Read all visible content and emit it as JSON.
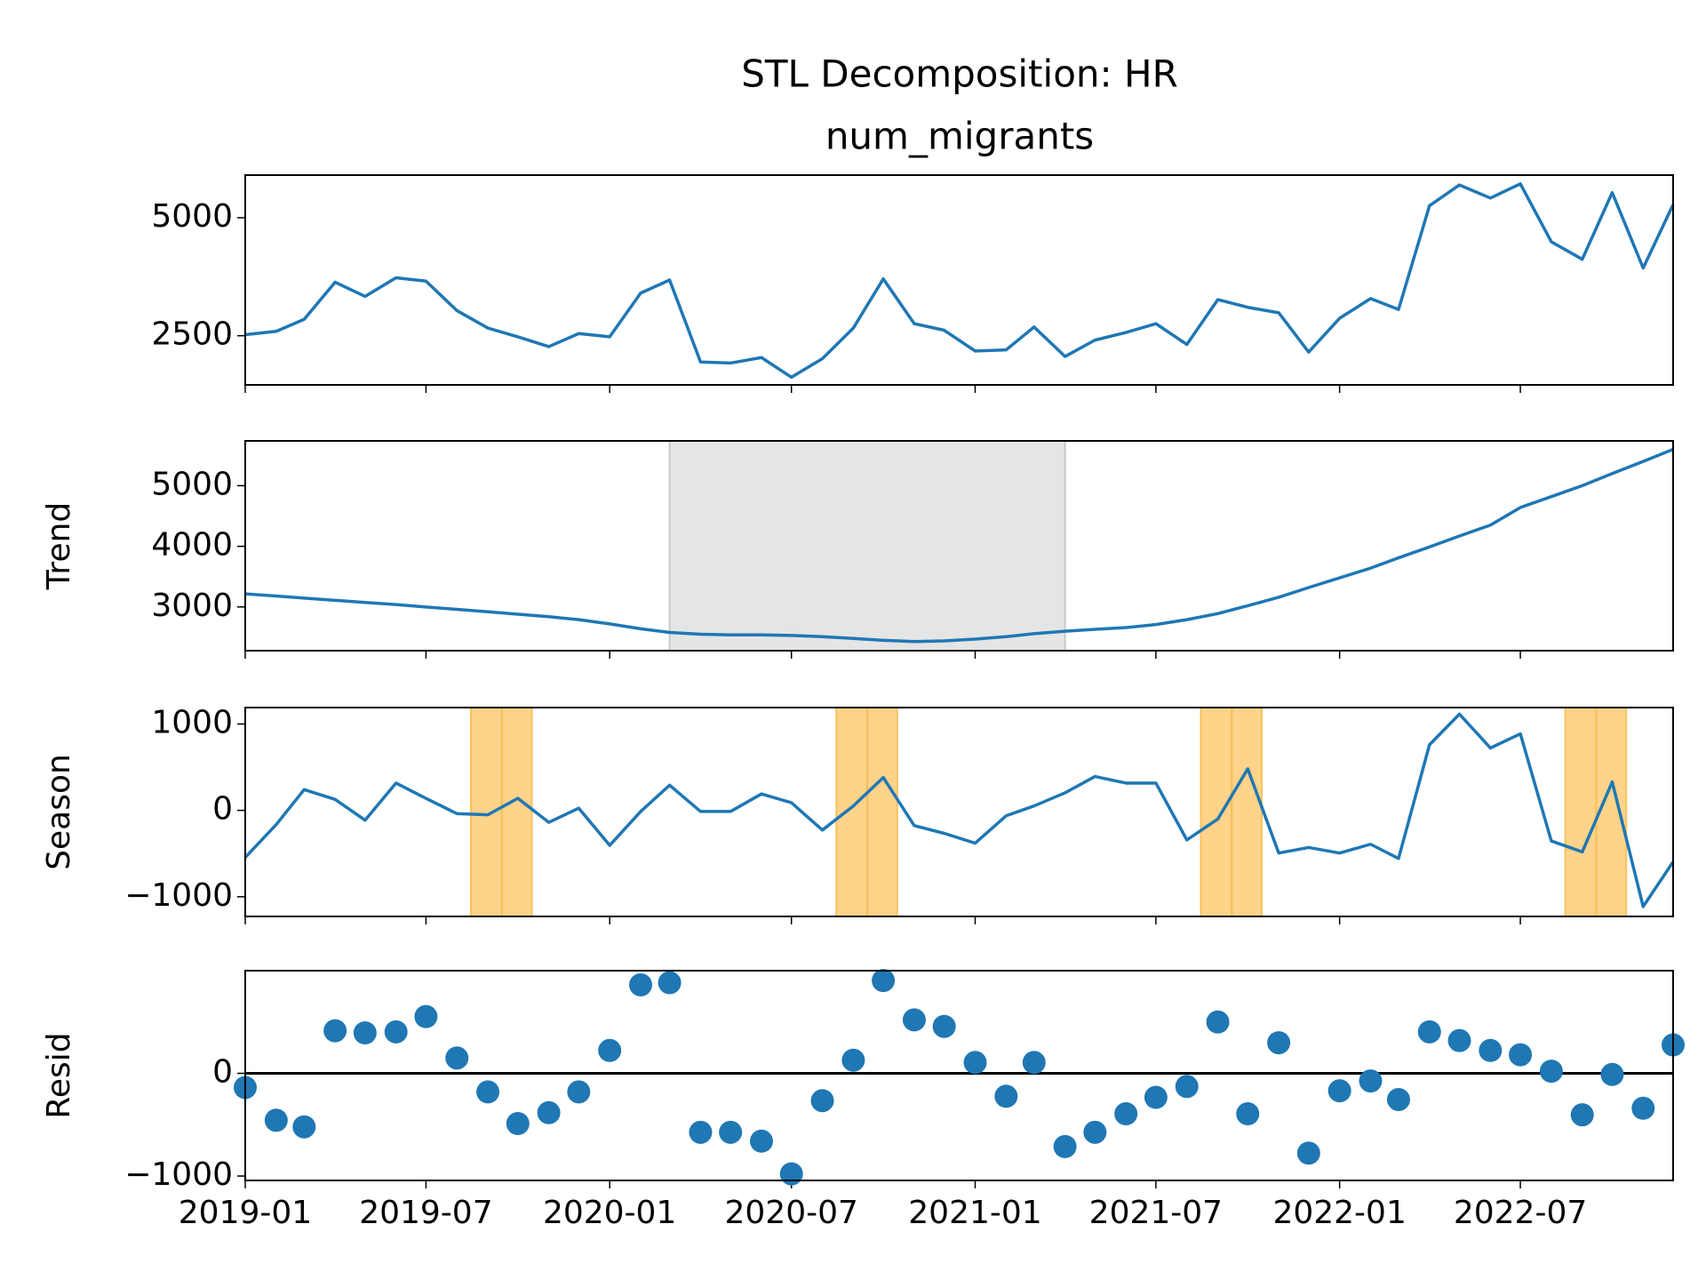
{
  "chart_data": [
    {
      "type": "line",
      "title": "STL Decomposition: HR",
      "subtitle": "num_migrants",
      "color": "#1f77b4",
      "x": [
        "2019-01",
        "2019-02",
        "2019-03",
        "2019-04",
        "2019-05",
        "2019-06",
        "2019-07",
        "2019-08",
        "2019-09",
        "2019-10",
        "2019-11",
        "2019-12",
        "2020-01",
        "2020-02",
        "2020-03",
        "2020-04",
        "2020-05",
        "2020-06",
        "2020-07",
        "2020-08",
        "2020-09",
        "2020-10",
        "2020-11",
        "2020-12",
        "2021-01",
        "2021-02",
        "2021-03",
        "2021-04",
        "2021-05",
        "2021-06",
        "2021-07",
        "2021-08",
        "2021-09",
        "2021-10",
        "2021-11",
        "2021-12",
        "2022-01",
        "2022-02",
        "2022-03",
        "2022-04",
        "2022-05",
        "2022-06",
        "2022-07",
        "2022-08",
        "2022-09",
        "2022-10",
        "2022-11",
        "2022-12"
      ],
      "values": [
        2523,
        2593,
        2847,
        3634,
        3333,
        3727,
        3657,
        3032,
        2662,
        2477,
        2269,
        2546,
        2477,
        3403,
        3680,
        1944,
        1921,
        2037,
        1620,
        2014,
        2662,
        3704,
        2755,
        2616,
        2176,
        2199,
        2685,
        2060,
        2407,
        2569,
        2755,
        2315,
        3264,
        3102,
        2986,
        2153,
        2870,
        3287,
        3056,
        5255,
        5694,
        5417,
        5718,
        4491,
        4120,
        5532,
        3935,
        5278
      ],
      "xlim": [
        "2019-01",
        "2022-12"
      ],
      "xticks": [
        "2019-01",
        "2019-07",
        "2020-01",
        "2020-07",
        "2021-01",
        "2021-07",
        "2022-01",
        "2022-07"
      ],
      "ylim": [
        1458,
        5903
      ],
      "yticks": [
        2500,
        5000
      ]
    },
    {
      "type": "line",
      "ylabel": "Trend",
      "color": "#1f77b4",
      "x": [
        "2019-01",
        "2019-02",
        "2019-03",
        "2019-04",
        "2019-05",
        "2019-06",
        "2019-07",
        "2019-08",
        "2019-09",
        "2019-10",
        "2019-11",
        "2019-12",
        "2020-01",
        "2020-02",
        "2020-03",
        "2020-04",
        "2020-05",
        "2020-06",
        "2020-07",
        "2020-08",
        "2020-09",
        "2020-10",
        "2020-11",
        "2020-12",
        "2021-01",
        "2021-02",
        "2021-03",
        "2021-04",
        "2021-05",
        "2021-06",
        "2021-07",
        "2021-08",
        "2021-09",
        "2021-10",
        "2021-11",
        "2021-12",
        "2022-01",
        "2022-02",
        "2022-03",
        "2022-04",
        "2022-05",
        "2022-06",
        "2022-07",
        "2022-08",
        "2022-09",
        "2022-10",
        "2022-11",
        "2022-12"
      ],
      "values": [
        3216,
        3180,
        3145,
        3110,
        3075,
        3040,
        3000,
        2960,
        2920,
        2880,
        2840,
        2790,
        2720,
        2640,
        2580,
        2550,
        2540,
        2540,
        2530,
        2510,
        2480,
        2450,
        2430,
        2440,
        2470,
        2510,
        2560,
        2600,
        2630,
        2660,
        2710,
        2790,
        2890,
        3020,
        3160,
        3320,
        3480,
        3640,
        3810,
        3990,
        4170,
        4350,
        4640,
        4820,
        5000,
        5200,
        5400,
        5600
      ],
      "spans": [
        {
          "start": "2020-03-01",
          "end": "2021-04-01",
          "color": "#e5e5e5",
          "edge": "#c8c8c8"
        }
      ],
      "xlim": [
        "2019-01",
        "2022-12"
      ],
      "xticks": [
        "2019-01",
        "2019-07",
        "2020-01",
        "2020-07",
        "2021-01",
        "2021-07",
        "2022-01",
        "2022-07"
      ],
      "ylim": [
        2279,
        5739
      ],
      "yticks": [
        3000,
        4000,
        5000
      ]
    },
    {
      "type": "line",
      "ylabel": "Season",
      "color": "#1f77b4",
      "x": [
        "2019-01",
        "2019-02",
        "2019-03",
        "2019-04",
        "2019-05",
        "2019-06",
        "2019-07",
        "2019-08",
        "2019-09",
        "2019-10",
        "2019-11",
        "2019-12",
        "2020-01",
        "2020-02",
        "2020-03",
        "2020-04",
        "2020-05",
        "2020-06",
        "2020-07",
        "2020-08",
        "2020-09",
        "2020-10",
        "2020-11",
        "2020-12",
        "2021-01",
        "2021-02",
        "2021-03",
        "2021-04",
        "2021-05",
        "2021-06",
        "2021-07",
        "2021-08",
        "2021-09",
        "2021-10",
        "2021-11",
        "2021-12",
        "2022-01",
        "2022-02",
        "2022-03",
        "2022-04",
        "2022-05",
        "2022-06",
        "2022-07",
        "2022-08",
        "2022-09",
        "2022-10",
        "2022-11",
        "2022-12"
      ],
      "values": [
        -544,
        -165,
        240,
        127,
        -114,
        316,
        139,
        -38,
        -51,
        139,
        -139,
        25,
        -405,
        -13,
        291,
        -13,
        -13,
        190,
        89,
        -228,
        51,
        380,
        -177,
        -266,
        -380,
        -63,
        51,
        203,
        392,
        316,
        316,
        -342,
        -101,
        481,
        -494,
        -430,
        -494,
        -392,
        -557,
        759,
        1114,
        722,
        886,
        -354,
        -481,
        329,
        -1114,
        -595
      ],
      "spans": [
        {
          "start": "2019-08-15",
          "end": "2019-10-15",
          "center": "2019-09-15",
          "color": "#ffd38a",
          "edge": "#f7c25e"
        },
        {
          "start": "2020-08-15",
          "end": "2020-10-15",
          "center": "2020-09-15",
          "color": "#ffd38a",
          "edge": "#f7c25e"
        },
        {
          "start": "2021-08-15",
          "end": "2021-10-15",
          "center": "2021-09-15",
          "color": "#ffd38a",
          "edge": "#f7c25e"
        },
        {
          "start": "2022-08-15",
          "end": "2022-10-15",
          "center": "2022-09-15",
          "color": "#ffd38a",
          "edge": "#f7c25e"
        }
      ],
      "xlim": [
        "2019-01",
        "2022-12"
      ],
      "xticks": [
        "2019-01",
        "2019-07",
        "2020-01",
        "2020-07",
        "2021-01",
        "2021-07",
        "2022-01",
        "2022-07"
      ],
      "ylim": [
        -1228,
        1190
      ],
      "yticks": [
        {
          "value": -1000,
          "label": "−1000"
        },
        0,
        1000
      ]
    },
    {
      "type": "scatter",
      "ylabel": "Resid",
      "color": "#1f77b4",
      "hline": 0,
      "x": [
        "2019-01",
        "2019-02",
        "2019-03",
        "2019-04",
        "2019-05",
        "2019-06",
        "2019-07",
        "2019-08",
        "2019-09",
        "2019-10",
        "2019-11",
        "2019-12",
        "2020-01",
        "2020-02",
        "2020-03",
        "2020-04",
        "2020-05",
        "2020-06",
        "2020-07",
        "2020-08",
        "2020-09",
        "2020-10",
        "2020-11",
        "2020-12",
        "2021-01",
        "2021-02",
        "2021-03",
        "2021-04",
        "2021-05",
        "2021-06",
        "2021-07",
        "2021-08",
        "2021-09",
        "2021-10",
        "2021-11",
        "2021-12",
        "2022-01",
        "2022-02",
        "2022-03",
        "2022-04",
        "2022-05",
        "2022-06",
        "2022-07",
        "2022-08",
        "2022-09",
        "2022-10",
        "2022-11",
        "2022-12"
      ],
      "values": [
        -138,
        -457,
        -521,
        415,
        394,
        404,
        553,
        149,
        -181,
        -489,
        -383,
        -181,
        223,
        862,
        883,
        -574,
        -574,
        -660,
        -979,
        -266,
        128,
        904,
        521,
        457,
        106,
        -223,
        106,
        -713,
        -574,
        -394,
        -234,
        -128,
        500,
        -394,
        298,
        -777,
        -170,
        -74,
        -255,
        404,
        319,
        223,
        181,
        21,
        -404,
        -11,
        -340,
        277
      ],
      "xlim": [
        "2019-01",
        "2022-12"
      ],
      "xticks": [
        "2019-01",
        "2019-07",
        "2020-01",
        "2020-07",
        "2021-01",
        "2021-07",
        "2022-01",
        "2022-07"
      ],
      "ylim": [
        -1043,
        1000
      ],
      "yticks": [
        {
          "value": -1000,
          "label": "−1000"
        },
        0
      ]
    }
  ]
}
